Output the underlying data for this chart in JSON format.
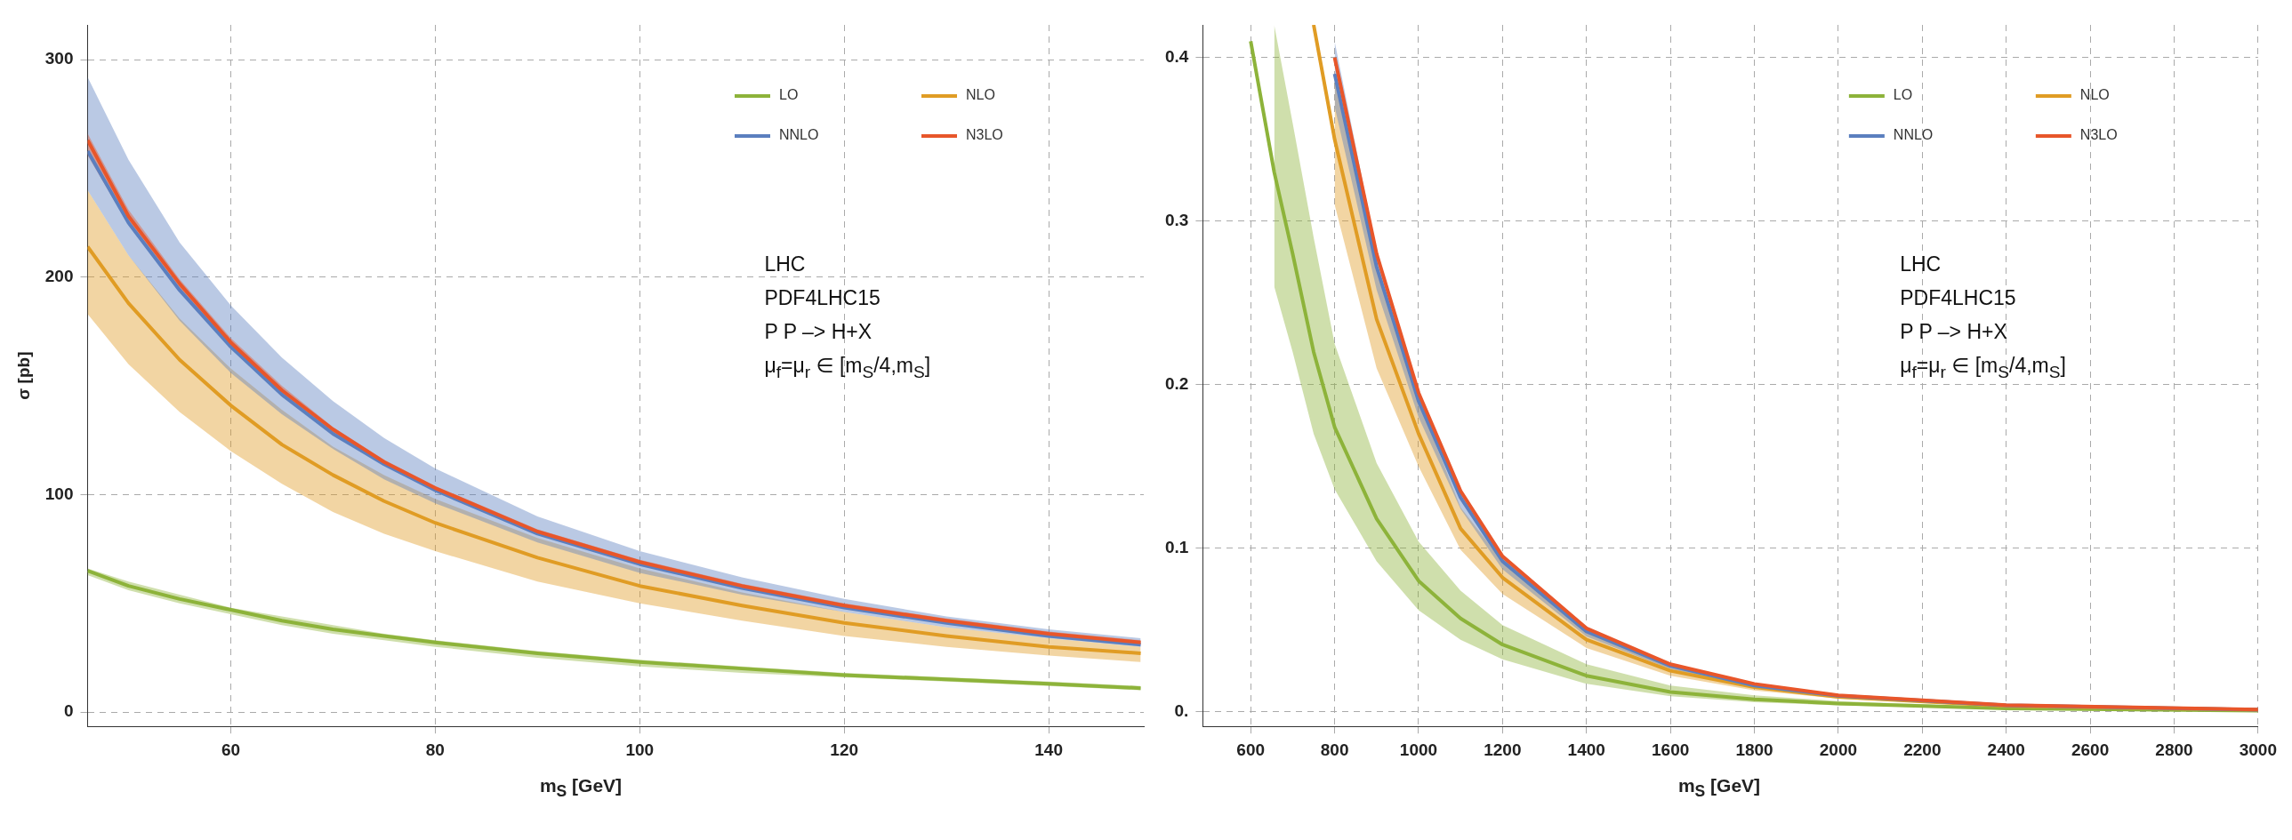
{
  "chart_data": [
    {
      "type": "line",
      "xlabel": "m$_{S}$ [GeV]",
      "ylabel": "σ [pb]",
      "xlim": [
        46,
        149.3
      ],
      "ylim": [
        -6.6,
        316
      ],
      "xticks": [
        60,
        80,
        100,
        120,
        140
      ],
      "yticks": [
        0,
        100,
        200,
        300
      ],
      "grid": true,
      "legend": "top right",
      "annotations": [
        "LHC",
        "PDF4LHC15",
        "P P –> H+X",
        "μ$_{f}$=μ$_{r}$ ∈ [m$_{S}$/4,m$_{S}$]"
      ],
      "series": [
        {
          "name": "LO",
          "color": "#8db33a",
          "x": [
            46,
            50,
            55,
            60,
            65,
            70,
            75,
            80,
            90,
            100,
            110,
            120,
            130,
            140,
            149
          ],
          "values": [
            65,
            58,
            52,
            47,
            42,
            38,
            35,
            32,
            27,
            23,
            20,
            17,
            15,
            13,
            11
          ],
          "lower": [
            63,
            56,
            50,
            45,
            40,
            36,
            33,
            30,
            25,
            21,
            18,
            16,
            14,
            12,
            10
          ],
          "upper": [
            66,
            60,
            54,
            48,
            44,
            40,
            36,
            33,
            28,
            24,
            21,
            18,
            16,
            14,
            12
          ]
        },
        {
          "name": "NLO",
          "color": "#e09c24",
          "x": [
            46,
            50,
            55,
            60,
            65,
            70,
            75,
            80,
            90,
            100,
            110,
            120,
            130,
            140,
            149
          ],
          "values": [
            214,
            188,
            162,
            141,
            123,
            109,
            97,
            87,
            71,
            58,
            49,
            41,
            35,
            30,
            27
          ],
          "lower": [
            183,
            160,
            138,
            120,
            105,
            92,
            82,
            74,
            60,
            50,
            42,
            35,
            30,
            26,
            23
          ],
          "upper": [
            240,
            210,
            181,
            158,
            139,
            122,
            109,
            98,
            80,
            66,
            55,
            46,
            39,
            34,
            30
          ]
        },
        {
          "name": "NNLO",
          "color": "#5b7fbf",
          "x": [
            46,
            50,
            55,
            60,
            65,
            70,
            75,
            80,
            90,
            100,
            110,
            120,
            130,
            140,
            149
          ],
          "values": [
            258,
            225,
            194,
            168,
            146,
            128,
            114,
            102,
            82,
            68,
            57,
            48,
            41,
            35,
            31
          ],
          "lower": [
            240,
            210,
            180,
            156,
            137,
            121,
            107,
            96,
            78,
            64,
            54,
            46,
            39,
            34,
            30
          ],
          "upper": [
            292,
            254,
            216,
            187,
            163,
            143,
            126,
            112,
            90,
            74,
            62,
            52,
            44,
            38,
            34
          ]
        },
        {
          "name": "N3LO",
          "color": "#e8562a",
          "x": [
            46,
            50,
            55,
            60,
            65,
            70,
            75,
            80,
            90,
            100,
            110,
            120,
            130,
            140,
            149
          ],
          "values": [
            263,
            228,
            197,
            170,
            148,
            130,
            115,
            103,
            83,
            69,
            58,
            49,
            42,
            36,
            32
          ],
          "lower": [
            256,
            224,
            194,
            168,
            146,
            128,
            114,
            102,
            82,
            68,
            57,
            48,
            41,
            35,
            31
          ],
          "upper": [
            266,
            231,
            199,
            172,
            150,
            131,
            116,
            104,
            84,
            70,
            59,
            50,
            43,
            37,
            33
          ]
        }
      ]
    },
    {
      "type": "line",
      "xlabel": "m$_{S}$ [GeV]",
      "xlim": [
        486,
        3000
      ],
      "ylim": [
        -0.009,
        0.42
      ],
      "xticks": [
        600,
        800,
        1000,
        1200,
        1400,
        1600,
        1800,
        2000,
        2200,
        2400,
        2600,
        2800,
        3000
      ],
      "yticks": [
        {
          "value": 0,
          "label": "0."
        },
        0.1,
        0.2,
        0.3,
        0.4
      ],
      "grid": true,
      "legend": "top right",
      "annotations": [
        "LHC",
        "PDF4LHC15",
        "P P –> H+X",
        "μ$_{f}$=μ$_{r}$ ∈ [m$_{S}$/4,m$_{S}$]"
      ],
      "series": [
        {
          "name": "LO",
          "color": "#8db33a",
          "x": [
            600,
            656,
            700,
            750,
            800,
            900,
            1000,
            1100,
            1200,
            1400,
            1600,
            1800,
            2000,
            2400,
            3000
          ],
          "values": [
            0.41,
            0.33,
            0.28,
            0.22,
            0.174,
            0.118,
            0.08,
            0.057,
            0.041,
            0.022,
            0.012,
            0.0075,
            0.005,
            0.002,
            0.0006
          ],
          "lower": [
            null,
            0.26,
            0.22,
            0.17,
            0.136,
            0.092,
            0.062,
            0.044,
            0.032,
            0.017,
            0.0094,
            0.0058,
            0.0039,
            0.0016,
            0.0005
          ],
          "upper": [
            null,
            0.42,
            0.36,
            0.29,
            0.225,
            0.152,
            0.104,
            0.074,
            0.053,
            0.029,
            0.016,
            0.01,
            0.0065,
            0.0027,
            0.0008
          ]
        },
        {
          "name": "NLO",
          "color": "#e09c24",
          "x": [
            750,
            800,
            900,
            1000,
            1100,
            1200,
            1400,
            1600,
            1800,
            2000,
            2400,
            3000
          ],
          "values": [
            0.42,
            0.35,
            0.24,
            0.17,
            0.112,
            0.082,
            0.044,
            0.025,
            0.015,
            0.009,
            0.0035,
            0.0011
          ],
          "lower": [
            null,
            0.31,
            0.21,
            0.15,
            0.099,
            0.072,
            0.039,
            0.022,
            0.013,
            0.008,
            0.0031,
            0.001
          ],
          "upper": [
            null,
            0.39,
            0.27,
            0.19,
            0.125,
            0.092,
            0.049,
            0.028,
            0.017,
            0.01,
            0.0039,
            0.0012
          ]
        },
        {
          "name": "NNLO",
          "color": "#5b7fbf",
          "x": [
            800,
            900,
            1000,
            1100,
            1200,
            1400,
            1600,
            1800,
            2000,
            2400,
            3000
          ],
          "values": [
            0.39,
            0.272,
            0.19,
            0.131,
            0.092,
            0.049,
            0.028,
            0.016,
            0.0097,
            0.0039,
            0.0012
          ],
          "lower": [
            0.37,
            0.258,
            0.18,
            0.124,
            0.087,
            0.046,
            0.026,
            0.015,
            0.0091,
            0.0036,
            0.0011
          ],
          "upper": [
            0.41,
            0.282,
            0.197,
            0.136,
            0.096,
            0.052,
            0.029,
            0.017,
            0.0101,
            0.0041,
            0.0013
          ]
        },
        {
          "name": "N3LO",
          "color": "#e8562a",
          "x": [
            800,
            900,
            1000,
            1100,
            1200,
            1400,
            1600,
            1800,
            2000,
            2400,
            3000
          ],
          "values": [
            0.4,
            0.28,
            0.195,
            0.135,
            0.095,
            0.051,
            0.029,
            0.017,
            0.01,
            0.004,
            0.0013
          ]
        }
      ]
    }
  ]
}
